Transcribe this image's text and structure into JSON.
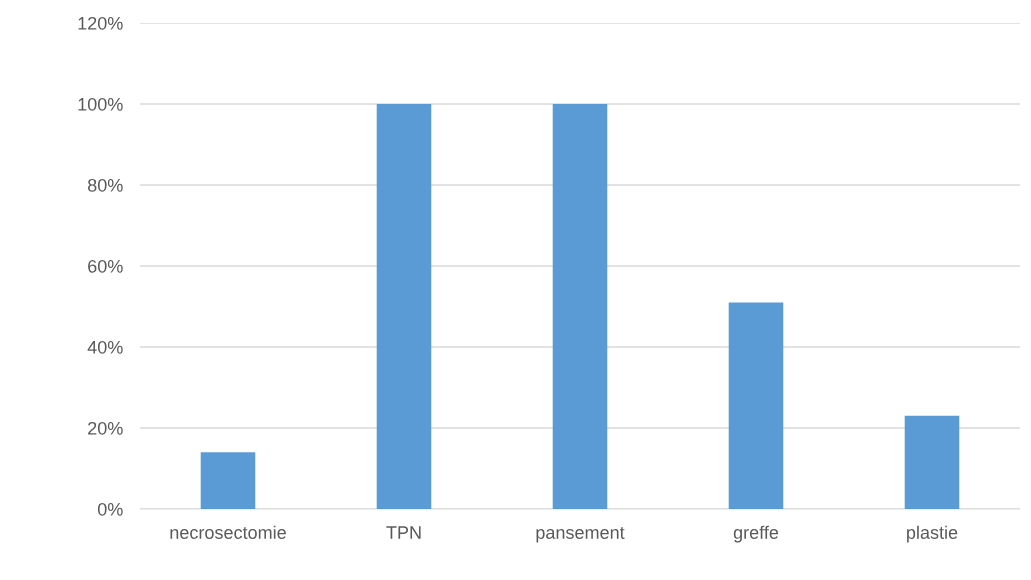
{
  "chart_data": {
    "type": "bar",
    "categories": [
      "necrosectomie",
      "TPN",
      "pansement",
      "greffe",
      "plastie"
    ],
    "values": [
      14,
      100,
      100,
      51,
      23
    ],
    "color": "#5b9bd5",
    "ylim": [
      0,
      120
    ],
    "yticks": [
      {
        "value": 0,
        "label": "0%"
      },
      {
        "value": 20,
        "label": "20%"
      },
      {
        "value": 40,
        "label": "40%"
      },
      {
        "value": 60,
        "label": "60%"
      },
      {
        "value": 80,
        "label": "80%"
      },
      {
        "value": 100,
        "label": "100%"
      },
      {
        "value": 120,
        "label": "120%"
      }
    ],
    "grid": "y"
  }
}
